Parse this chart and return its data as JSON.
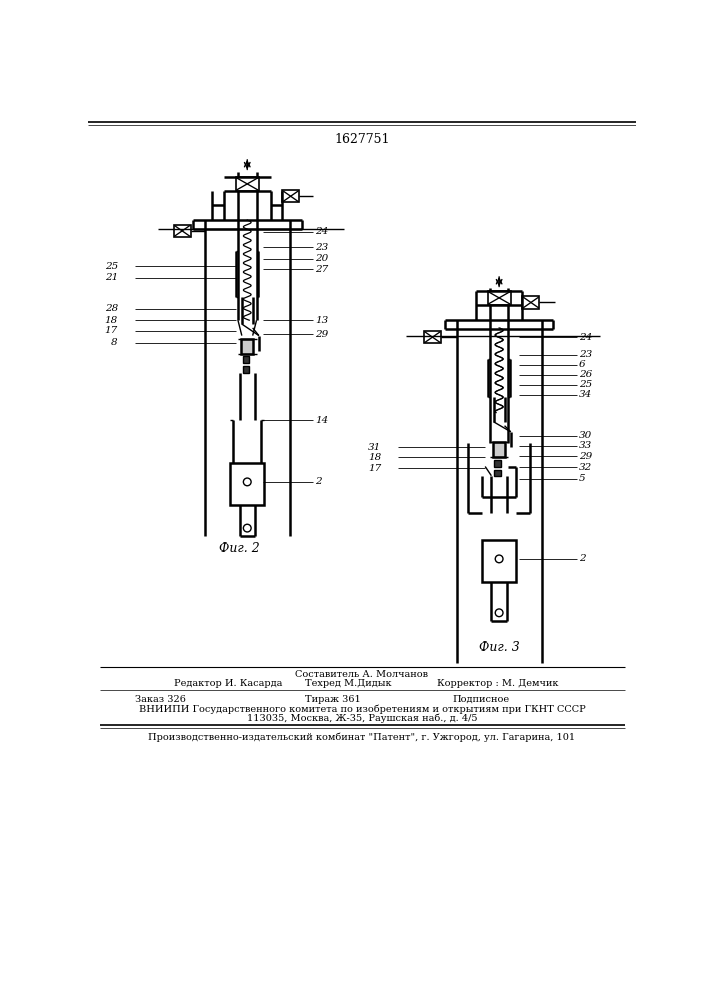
{
  "title": "1627751",
  "fig2_caption": "Фиг. 2",
  "fig3_caption": "Фиг. 3",
  "footer_col1_line1": "Редактор И. Касарда",
  "footer_col2_line1": "Составитель А. Молчанов",
  "footer_col2_line2": "Техред М.Дидык",
  "footer_col3_line1": "Корректор : М. Демчик",
  "footer_line3": "Заказ 326",
  "footer_line3b": "Тираж 361",
  "footer_line3c": "Подписное",
  "footer_line4": "ВНИИПИ Государственного комитета по изобретениям и открытиям при ГКНТ СССР",
  "footer_line5": "113035, Москва, Ж-35, Раушская наб., д. 4/5",
  "footer_line6": "Производственно-издательский комбинат \"Патент\", г. Ужгород, ул. Гагарина, 101",
  "bg_color": "#ffffff",
  "line_color": "#000000"
}
